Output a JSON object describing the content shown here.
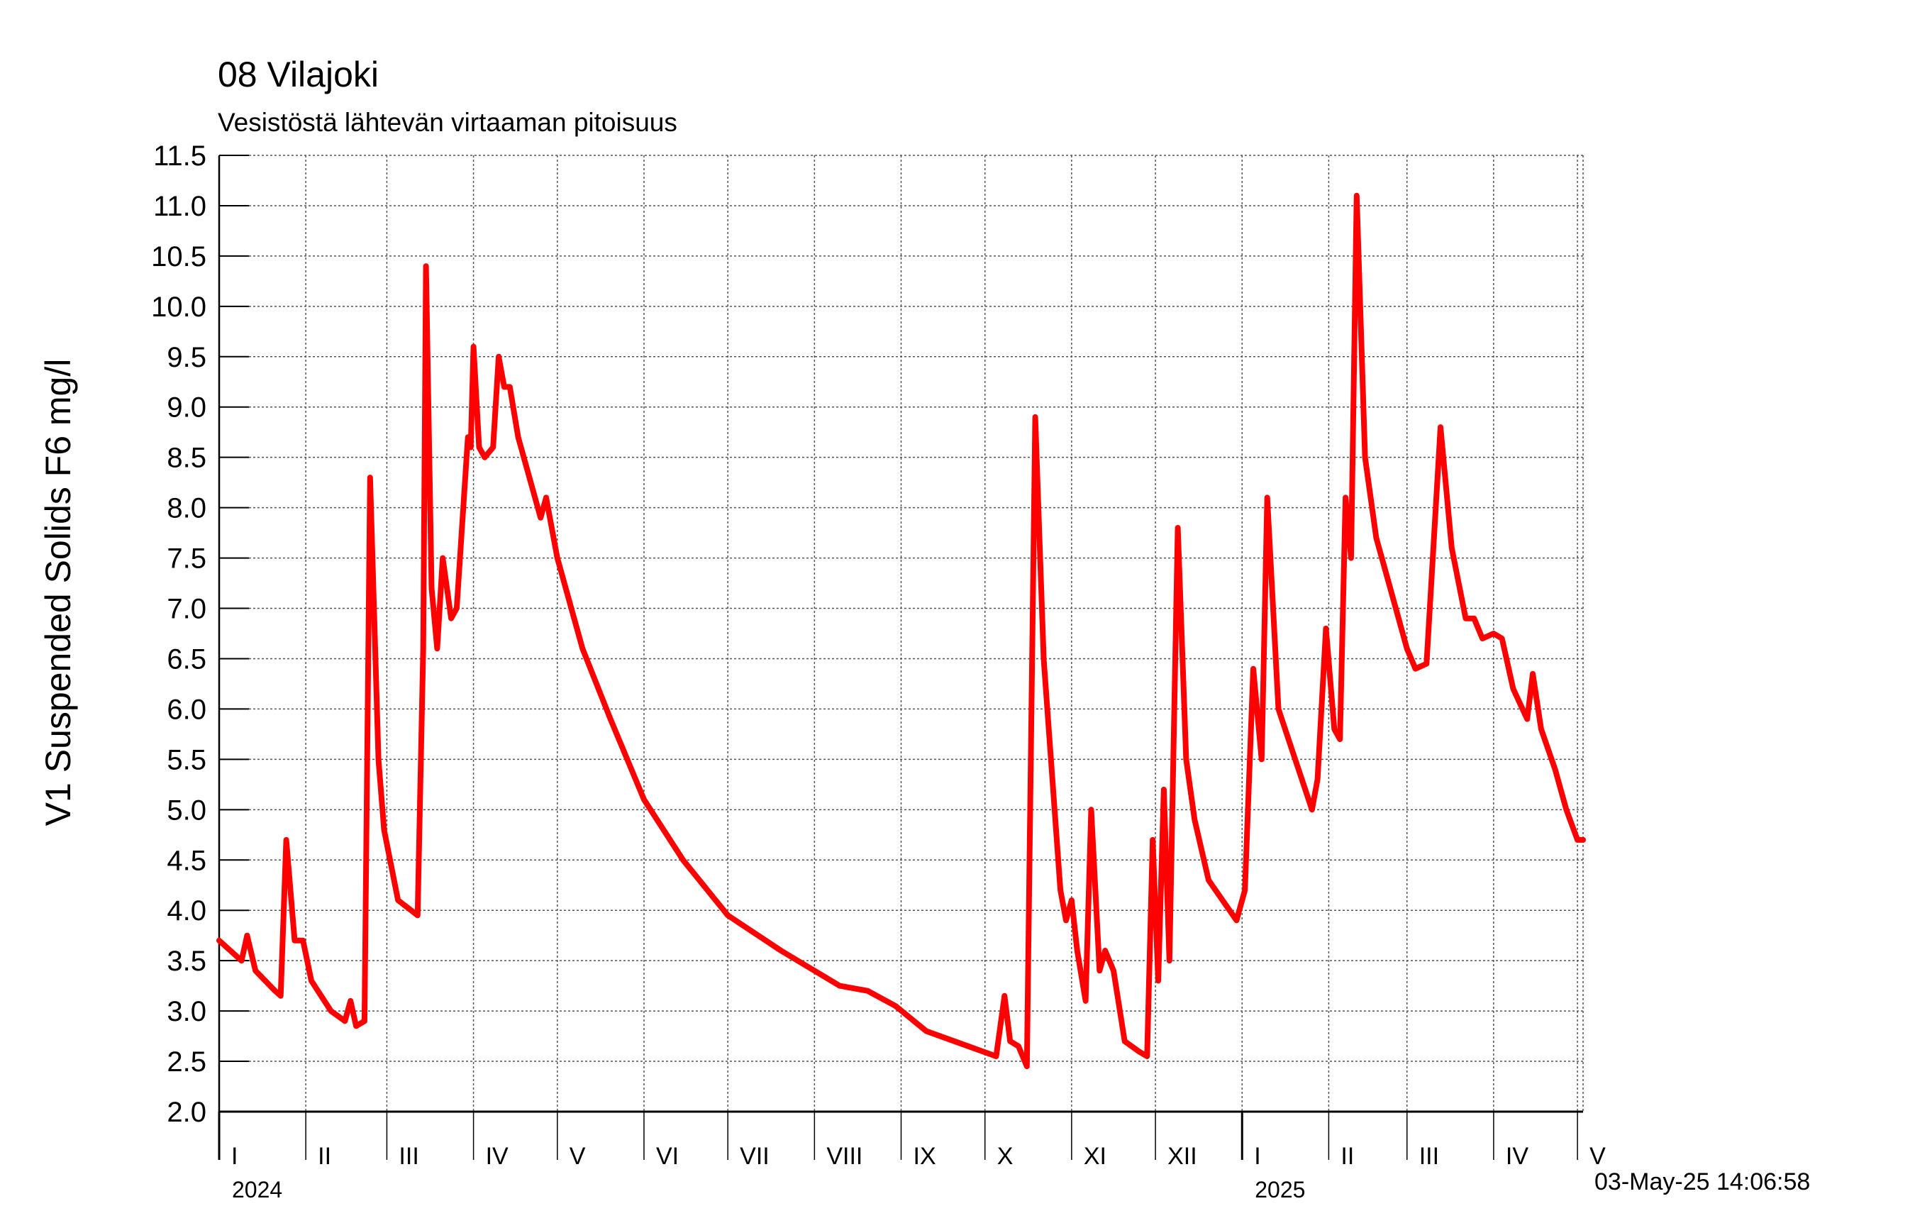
{
  "title": "08 Vilajoki",
  "subtitle": "Vesistöstä lähtevän virtaaman pitoisuus",
  "ylabel": "V1 Suspended Solids F6 mg/l",
  "timestamp": "03-May-25 14:06:58",
  "colors": {
    "series": "#ff0000",
    "grid": "#555555",
    "axis": "#000000",
    "background": "#ffffff"
  },
  "chart_data": {
    "type": "line",
    "title": "08 Vilajoki",
    "subtitle": "Vesistöstä lähtevän virtaaman pitoisuus",
    "ylabel": "V1 Suspended Solids F6 mg/l",
    "xlabel": "",
    "ylim": [
      2.0,
      11.5
    ],
    "yticks": [
      2.0,
      2.5,
      3.0,
      3.5,
      4.0,
      4.5,
      5.0,
      5.5,
      6.0,
      6.5,
      7.0,
      7.5,
      8.0,
      8.5,
      9.0,
      9.5,
      10.0,
      10.5,
      11.0,
      11.5
    ],
    "ytick_labels": [
      "2.0",
      "2.5",
      "3.0",
      "3.5",
      "4.0",
      "4.5",
      "5.0",
      "5.5",
      "6.0",
      "6.5",
      "7.0",
      "7.5",
      "8.0",
      "8.5",
      "9.0",
      "9.5",
      "10.0",
      "10.5",
      "11.0",
      "11.5"
    ],
    "xlim": [
      "2024-01-01",
      "2025-05-03"
    ],
    "grid": true,
    "month_ticks": [
      {
        "start": "2024-01-01",
        "label": "I"
      },
      {
        "start": "2024-02-01",
        "label": "II"
      },
      {
        "start": "2024-03-01",
        "label": "III"
      },
      {
        "start": "2024-04-01",
        "label": "IV"
      },
      {
        "start": "2024-05-01",
        "label": "V"
      },
      {
        "start": "2024-06-01",
        "label": "VI"
      },
      {
        "start": "2024-07-01",
        "label": "VII"
      },
      {
        "start": "2024-08-01",
        "label": "VIII"
      },
      {
        "start": "2024-09-01",
        "label": "IX"
      },
      {
        "start": "2024-10-01",
        "label": "X"
      },
      {
        "start": "2024-11-01",
        "label": "XI"
      },
      {
        "start": "2024-12-01",
        "label": "XII"
      },
      {
        "start": "2025-01-01",
        "label": "I"
      },
      {
        "start": "2025-02-01",
        "label": "II"
      },
      {
        "start": "2025-03-01",
        "label": "III"
      },
      {
        "start": "2025-04-01",
        "label": "IV"
      },
      {
        "start": "2025-05-01",
        "label": "V"
      }
    ],
    "year_ticks": [
      {
        "date": "2024-01-01",
        "label": "2024"
      },
      {
        "date": "2025-01-01",
        "label": "2025"
      }
    ],
    "series": [
      {
        "color": "#ff0000",
        "points": [
          [
            "2024-01-01",
            3.7
          ],
          [
            "2024-01-09",
            3.5
          ],
          [
            "2024-01-11",
            3.75
          ],
          [
            "2024-01-14",
            3.4
          ],
          [
            "2024-01-21",
            3.2
          ],
          [
            "2024-01-23",
            3.15
          ],
          [
            "2024-01-25",
            4.7
          ],
          [
            "2024-01-28",
            3.7
          ],
          [
            "2024-01-31",
            3.7
          ],
          [
            "2024-02-03",
            3.3
          ],
          [
            "2024-02-10",
            3.0
          ],
          [
            "2024-02-15",
            2.9
          ],
          [
            "2024-02-17",
            3.1
          ],
          [
            "2024-02-19",
            2.85
          ],
          [
            "2024-02-22",
            2.9
          ],
          [
            "2024-02-24",
            8.3
          ],
          [
            "2024-02-27",
            5.5
          ],
          [
            "2024-02-29",
            4.8
          ],
          [
            "2024-03-05",
            4.1
          ],
          [
            "2024-03-12",
            3.95
          ],
          [
            "2024-03-14",
            6.6
          ],
          [
            "2024-03-15",
            10.4
          ],
          [
            "2024-03-17",
            7.2
          ],
          [
            "2024-03-19",
            6.6
          ],
          [
            "2024-03-21",
            7.5
          ],
          [
            "2024-03-24",
            6.9
          ],
          [
            "2024-03-26",
            7.0
          ],
          [
            "2024-03-30",
            8.7
          ],
          [
            "2024-03-31",
            8.6
          ],
          [
            "2024-04-01",
            9.6
          ],
          [
            "2024-04-03",
            8.6
          ],
          [
            "2024-04-05",
            8.5
          ],
          [
            "2024-04-08",
            8.6
          ],
          [
            "2024-04-10",
            9.5
          ],
          [
            "2024-04-12",
            9.2
          ],
          [
            "2024-04-14",
            9.2
          ],
          [
            "2024-04-17",
            8.7
          ],
          [
            "2024-04-21",
            8.3
          ],
          [
            "2024-04-25",
            7.9
          ],
          [
            "2024-04-27",
            8.1
          ],
          [
            "2024-05-01",
            7.5
          ],
          [
            "2024-05-10",
            6.6
          ],
          [
            "2024-05-20",
            5.9
          ],
          [
            "2024-06-01",
            5.1
          ],
          [
            "2024-06-15",
            4.5
          ],
          [
            "2024-07-01",
            3.95
          ],
          [
            "2024-07-20",
            3.6
          ],
          [
            "2024-08-10",
            3.25
          ],
          [
            "2024-08-20",
            3.2
          ],
          [
            "2024-08-30",
            3.05
          ],
          [
            "2024-09-10",
            2.8
          ],
          [
            "2024-09-20",
            2.7
          ],
          [
            "2024-09-30",
            2.6
          ],
          [
            "2024-10-05",
            2.55
          ],
          [
            "2024-10-08",
            3.15
          ],
          [
            "2024-10-10",
            2.7
          ],
          [
            "2024-10-13",
            2.65
          ],
          [
            "2024-10-16",
            2.45
          ],
          [
            "2024-10-19",
            8.9
          ],
          [
            "2024-10-22",
            6.5
          ],
          [
            "2024-10-28",
            4.2
          ],
          [
            "2024-10-30",
            3.9
          ],
          [
            "2024-11-01",
            4.1
          ],
          [
            "2024-11-03",
            3.6
          ],
          [
            "2024-11-06",
            3.1
          ],
          [
            "2024-11-08",
            5.0
          ],
          [
            "2024-11-11",
            3.4
          ],
          [
            "2024-11-13",
            3.6
          ],
          [
            "2024-11-16",
            3.4
          ],
          [
            "2024-11-20",
            2.7
          ],
          [
            "2024-11-25",
            2.6
          ],
          [
            "2024-11-28",
            2.55
          ],
          [
            "2024-11-30",
            4.7
          ],
          [
            "2024-12-02",
            3.3
          ],
          [
            "2024-12-04",
            5.2
          ],
          [
            "2024-12-06",
            3.5
          ],
          [
            "2024-12-09",
            7.8
          ],
          [
            "2024-12-12",
            5.5
          ],
          [
            "2024-12-15",
            4.9
          ],
          [
            "2024-12-20",
            4.3
          ],
          [
            "2024-12-30",
            3.9
          ],
          [
            "2025-01-02",
            4.2
          ],
          [
            "2025-01-05",
            6.4
          ],
          [
            "2025-01-08",
            5.5
          ],
          [
            "2025-01-10",
            8.1
          ],
          [
            "2025-01-14",
            6.0
          ],
          [
            "2025-01-20",
            5.5
          ],
          [
            "2025-01-26",
            5.0
          ],
          [
            "2025-01-28",
            5.3
          ],
          [
            "2025-01-31",
            6.8
          ],
          [
            "2025-02-03",
            5.8
          ],
          [
            "2025-02-05",
            5.7
          ],
          [
            "2025-02-07",
            8.1
          ],
          [
            "2025-02-09",
            7.5
          ],
          [
            "2025-02-11",
            11.1
          ],
          [
            "2025-02-14",
            8.5
          ],
          [
            "2025-02-18",
            7.7
          ],
          [
            "2025-02-22",
            7.3
          ],
          [
            "2025-03-01",
            6.6
          ],
          [
            "2025-03-04",
            6.4
          ],
          [
            "2025-03-08",
            6.45
          ],
          [
            "2025-03-13",
            8.8
          ],
          [
            "2025-03-17",
            7.6
          ],
          [
            "2025-03-22",
            6.9
          ],
          [
            "2025-03-25",
            6.9
          ],
          [
            "2025-03-28",
            6.7
          ],
          [
            "2025-04-01",
            6.75
          ],
          [
            "2025-04-04",
            6.7
          ],
          [
            "2025-04-08",
            6.2
          ],
          [
            "2025-04-13",
            5.9
          ],
          [
            "2025-04-15",
            6.35
          ],
          [
            "2025-04-18",
            5.8
          ],
          [
            "2025-04-23",
            5.4
          ],
          [
            "2025-04-27",
            5.0
          ],
          [
            "2025-05-01",
            4.7
          ],
          [
            "2025-05-03",
            4.7
          ]
        ]
      }
    ]
  }
}
